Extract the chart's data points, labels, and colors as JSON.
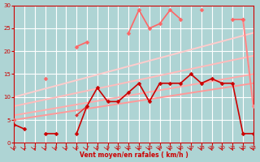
{
  "xlabel": "Vent moyen/en rafales ( km/h )",
  "xlim": [
    0,
    23
  ],
  "ylim": [
    0,
    30
  ],
  "xticks": [
    0,
    1,
    2,
    3,
    4,
    5,
    6,
    7,
    8,
    9,
    10,
    11,
    12,
    13,
    14,
    15,
    16,
    17,
    18,
    19,
    20,
    21,
    22,
    23
  ],
  "yticks": [
    0,
    5,
    10,
    15,
    20,
    25,
    30
  ],
  "background_color": "#aed4d4",
  "grid_color": "#ffffff",
  "lines": [
    {
      "x": [
        0,
        1,
        2,
        3,
        4,
        5,
        6,
        7,
        8,
        9,
        10,
        11,
        12,
        13,
        14,
        15,
        16,
        17,
        18,
        19,
        20,
        21,
        22,
        23
      ],
      "y": [
        4,
        3,
        null,
        2,
        2,
        null,
        2,
        8,
        12,
        9,
        9,
        11,
        13,
        9,
        13,
        13,
        13,
        15,
        13,
        14,
        13,
        13,
        2,
        2
      ],
      "color": "#cc0000",
      "lw": 1.2,
      "marker": "D",
      "ms": 2.5,
      "zorder": 5
    },
    {
      "x": [
        0,
        1,
        2,
        3,
        4,
        5,
        6,
        7,
        8,
        9,
        10,
        11,
        12,
        13,
        14,
        15,
        16,
        17,
        18,
        19,
        20,
        21,
        22,
        23
      ],
      "y": [
        5,
        null,
        null,
        null,
        null,
        null,
        6,
        8,
        null,
        null,
        null,
        null,
        null,
        null,
        null,
        null,
        null,
        null,
        null,
        null,
        null,
        null,
        null,
        null
      ],
      "color": "#dd3333",
      "lw": 1.0,
      "marker": "D",
      "ms": 2.0,
      "zorder": 4
    },
    {
      "x": [
        0,
        23
      ],
      "y": [
        5,
        13
      ],
      "color": "#ff9999",
      "lw": 1.4,
      "marker": null,
      "ms": 0,
      "zorder": 2
    },
    {
      "x": [
        0,
        23
      ],
      "y": [
        6,
        15
      ],
      "color": "#ffaaaa",
      "lw": 1.4,
      "marker": null,
      "ms": 0,
      "zorder": 2
    },
    {
      "x": [
        0,
        23
      ],
      "y": [
        8,
        19
      ],
      "color": "#ffbbbb",
      "lw": 1.4,
      "marker": null,
      "ms": 0,
      "zorder": 2
    },
    {
      "x": [
        0,
        23
      ],
      "y": [
        10,
        24
      ],
      "color": "#ffcccc",
      "lw": 1.4,
      "marker": null,
      "ms": 0,
      "zorder": 2
    },
    {
      "x": [
        0,
        1,
        2,
        3,
        4,
        5,
        6,
        7,
        8,
        9,
        10,
        11,
        12,
        13,
        14,
        15,
        16,
        17,
        18,
        19,
        20,
        21,
        22,
        23
      ],
      "y": [
        5,
        null,
        null,
        14,
        null,
        null,
        21,
        22,
        null,
        null,
        null,
        24,
        29,
        25,
        26,
        29,
        27,
        null,
        29,
        null,
        null,
        27,
        27,
        null
      ],
      "color": "#ff6666",
      "lw": 1.2,
      "marker": "D",
      "ms": 2.5,
      "zorder": 4
    },
    {
      "x": [
        20,
        21,
        22,
        23
      ],
      "y": [
        null,
        null,
        27,
        8
      ],
      "color": "#ff8888",
      "lw": 1.5,
      "marker": "D",
      "ms": 2.5,
      "zorder": 3
    }
  ]
}
